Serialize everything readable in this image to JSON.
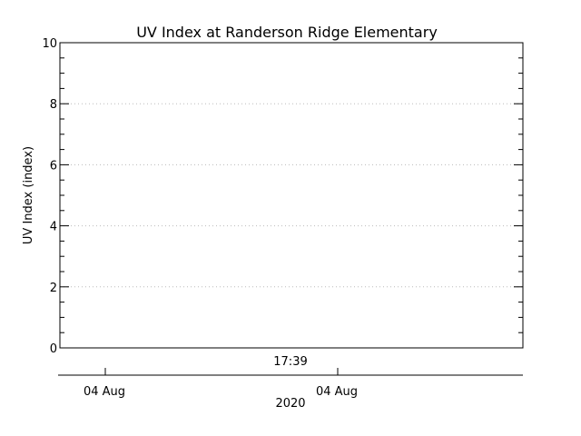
{
  "chart_data": {
    "type": "line",
    "title": "UV Index at Randerson Ridge Elementary",
    "ylabel": "UV Index (index)",
    "xlabel": "2020",
    "ylim": [
      0,
      10
    ],
    "y_major_ticks": [
      0,
      2,
      4,
      6,
      8,
      10
    ],
    "y_minor_step": 0.5,
    "grid": true,
    "series": [],
    "time_axis_label": "17:39",
    "date_axis_ticks": [
      "04 Aug",
      "04 Aug"
    ]
  }
}
